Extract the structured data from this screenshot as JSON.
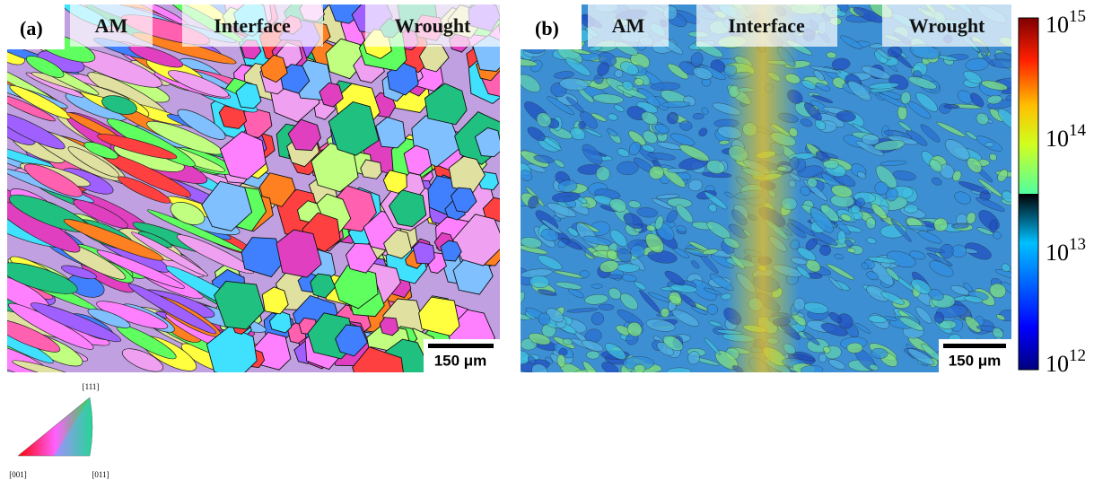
{
  "panel_a": {
    "label": "(a)",
    "regions": [
      "AM",
      "Interface",
      "Wrought"
    ],
    "scale_bar": "150 μm"
  },
  "panel_b": {
    "label": "(b)",
    "regions": [
      "AM",
      "Interface",
      "Wrought"
    ],
    "scale_bar": "150 μm",
    "colorbar": [
      {
        "base": "10",
        "exp": "15"
      },
      {
        "base": "10",
        "exp": "14"
      },
      {
        "base": "10",
        "exp": "13"
      },
      {
        "base": "10",
        "exp": "12"
      }
    ]
  },
  "ipf_legend": {
    "top": "[111]",
    "left": "[001]",
    "right": "[011]"
  }
}
